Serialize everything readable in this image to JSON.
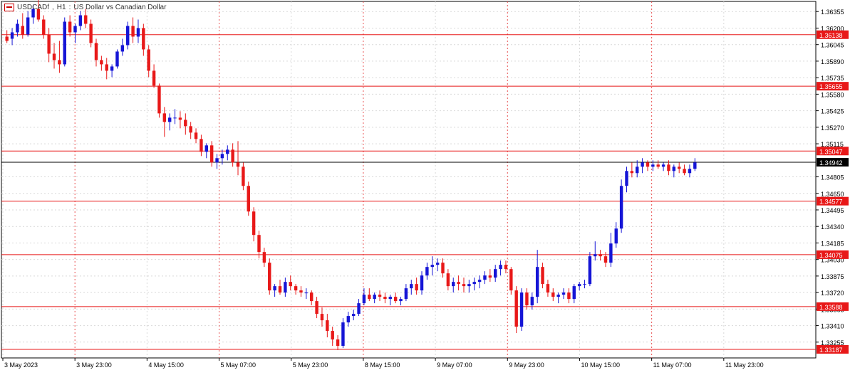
{
  "title_bar": {
    "symbol": "USDCADf",
    "timeframe": "H1",
    "description": "US Dollar vs Canadian Dollar",
    "icon": "chart-window-icon"
  },
  "colors": {
    "up_candle": "#1515d6",
    "down_candle": "#e81818",
    "level_line": "#e81818",
    "current_price_line": "#000000",
    "grid": "#d9d9d9",
    "vertical_session": "#e85050"
  },
  "chart_data": {
    "type": "candlestick",
    "symbol": "USDCADf",
    "timeframe": "H1",
    "ylim": [
      1.33187,
      1.3645
    ],
    "y_ticks": [
      "1.36355",
      "1.36200",
      "1.36045",
      "1.35890",
      "1.35735",
      "1.35580",
      "1.35425",
      "1.35270",
      "1.35115",
      "1.34805",
      "1.34650",
      "1.34495",
      "1.34340",
      "1.34185",
      "1.34030",
      "1.33875",
      "1.33720",
      "1.33565",
      "1.33410",
      "1.33255"
    ],
    "x_ticks": [
      "3 May 2023",
      "3 May 23:00",
      "4 May 15:00",
      "5 May 07:00",
      "5 May 23:00",
      "8 May 15:00",
      "9 May 07:00",
      "9 May 23:00",
      "10 May 15:00",
      "11 May 07:00",
      "11 May 23:00"
    ],
    "levels": [
      1.36138,
      1.35655,
      1.35047,
      1.34577,
      1.34075,
      1.33588,
      1.33187
    ],
    "level_labels": [
      "1.36138",
      "1.35655",
      "1.35047",
      "1.34577",
      "1.34075",
      "1.33588",
      "1.33187"
    ],
    "current_price": 1.34942,
    "current_price_label": "1.34942",
    "grid": true,
    "candles": [
      [
        1.3612,
        1.3618,
        1.3606,
        1.3608
      ],
      [
        1.361,
        1.362,
        1.3604,
        1.3616
      ],
      [
        1.3616,
        1.3628,
        1.3612,
        1.3624
      ],
      [
        1.3622,
        1.3634,
        1.361,
        1.3614
      ],
      [
        1.3614,
        1.3636,
        1.3612,
        1.363
      ],
      [
        1.363,
        1.3642,
        1.3624,
        1.3638
      ],
      [
        1.3638,
        1.365,
        1.3626,
        1.3628
      ],
      [
        1.3628,
        1.3632,
        1.361,
        1.3614
      ],
      [
        1.3614,
        1.362,
        1.3588,
        1.3596
      ],
      [
        1.3596,
        1.3606,
        1.3582,
        1.359
      ],
      [
        1.359,
        1.3608,
        1.3578,
        1.3586
      ],
      [
        1.3586,
        1.363,
        1.3584,
        1.3626
      ],
      [
        1.3626,
        1.3632,
        1.3612,
        1.3616
      ],
      [
        1.3616,
        1.3624,
        1.3606,
        1.3622
      ],
      [
        1.3622,
        1.3636,
        1.3618,
        1.3632
      ],
      [
        1.3632,
        1.3638,
        1.362,
        1.3624
      ],
      [
        1.3624,
        1.3628,
        1.3602,
        1.3606
      ],
      [
        1.3606,
        1.361,
        1.3584,
        1.359
      ],
      [
        1.359,
        1.3594,
        1.358,
        1.3586
      ],
      [
        1.3586,
        1.3592,
        1.3572,
        1.358
      ],
      [
        1.358,
        1.3586,
        1.3574,
        1.3584
      ],
      [
        1.3584,
        1.36,
        1.3582,
        1.3598
      ],
      [
        1.3598,
        1.361,
        1.3594,
        1.3604
      ],
      [
        1.3604,
        1.3626,
        1.36,
        1.3622
      ],
      [
        1.3622,
        1.363,
        1.3606,
        1.3612
      ],
      [
        1.3612,
        1.3628,
        1.3606,
        1.362
      ],
      [
        1.362,
        1.3624,
        1.3594,
        1.36
      ],
      [
        1.36,
        1.3604,
        1.3574,
        1.358
      ],
      [
        1.358,
        1.3586,
        1.3564,
        1.3566
      ],
      [
        1.3566,
        1.3568,
        1.3536,
        1.354
      ],
      [
        1.354,
        1.3546,
        1.3518,
        1.3532
      ],
      [
        1.3532,
        1.354,
        1.3524,
        1.3536
      ],
      [
        1.3536,
        1.3544,
        1.353,
        1.3536
      ],
      [
        1.3536,
        1.3542,
        1.3526,
        1.3534
      ],
      [
        1.3534,
        1.354,
        1.352,
        1.3528
      ],
      [
        1.3528,
        1.3532,
        1.3516,
        1.3522
      ],
      [
        1.3522,
        1.3526,
        1.3512,
        1.3516
      ],
      [
        1.3516,
        1.352,
        1.35,
        1.3504
      ],
      [
        1.3504,
        1.3512,
        1.3498,
        1.351
      ],
      [
        1.351,
        1.3514,
        1.349,
        1.3494
      ],
      [
        1.3494,
        1.3502,
        1.3488,
        1.3498
      ],
      [
        1.3498,
        1.3506,
        1.3492,
        1.3502
      ],
      [
        1.3502,
        1.351,
        1.3496,
        1.3506
      ],
      [
        1.3506,
        1.3512,
        1.349,
        1.3494
      ],
      [
        1.3494,
        1.3514,
        1.3482,
        1.349
      ],
      [
        1.349,
        1.3494,
        1.3468,
        1.3472
      ],
      [
        1.3472,
        1.3476,
        1.3444,
        1.3448
      ],
      [
        1.3448,
        1.3452,
        1.342,
        1.3426
      ],
      [
        1.3426,
        1.343,
        1.3404,
        1.341
      ],
      [
        1.341,
        1.3414,
        1.3396,
        1.34
      ],
      [
        1.34,
        1.3404,
        1.337,
        1.3374
      ],
      [
        1.3374,
        1.338,
        1.3368,
        1.3378
      ],
      [
        1.3378,
        1.3384,
        1.337,
        1.3372
      ],
      [
        1.3372,
        1.3386,
        1.3368,
        1.3382
      ],
      [
        1.3382,
        1.3388,
        1.3374,
        1.3378
      ],
      [
        1.3378,
        1.338,
        1.337,
        1.3374
      ],
      [
        1.3374,
        1.3378,
        1.3368,
        1.3372
      ],
      [
        1.3372,
        1.3376,
        1.3366,
        1.3372
      ],
      [
        1.3372,
        1.3374,
        1.336,
        1.3364
      ],
      [
        1.3364,
        1.3368,
        1.3348,
        1.3352
      ],
      [
        1.3352,
        1.3358,
        1.334,
        1.3346
      ],
      [
        1.3346,
        1.3352,
        1.333,
        1.3336
      ],
      [
        1.3336,
        1.334,
        1.3322,
        1.3328
      ],
      [
        1.3328,
        1.3332,
        1.3318,
        1.3322
      ],
      [
        1.3322,
        1.3348,
        1.332,
        1.3344
      ],
      [
        1.3344,
        1.3354,
        1.334,
        1.335
      ],
      [
        1.335,
        1.3356,
        1.3346,
        1.3352
      ],
      [
        1.3352,
        1.3366,
        1.335,
        1.3362
      ],
      [
        1.3362,
        1.3376,
        1.336,
        1.337
      ],
      [
        1.337,
        1.3376,
        1.3364,
        1.3366
      ],
      [
        1.3366,
        1.3372,
        1.3362,
        1.337
      ],
      [
        1.337,
        1.3374,
        1.3364,
        1.3368
      ],
      [
        1.3368,
        1.3372,
        1.3362,
        1.3366
      ],
      [
        1.3366,
        1.337,
        1.336,
        1.3368
      ],
      [
        1.3368,
        1.3372,
        1.3362,
        1.3364
      ],
      [
        1.3364,
        1.3368,
        1.336,
        1.3366
      ],
      [
        1.3366,
        1.338,
        1.3364,
        1.3376
      ],
      [
        1.3376,
        1.3384,
        1.337,
        1.338
      ],
      [
        1.338,
        1.3386,
        1.337,
        1.3374
      ],
      [
        1.3374,
        1.3392,
        1.337,
        1.3388
      ],
      [
        1.3388,
        1.34,
        1.3384,
        1.3396
      ],
      [
        1.3396,
        1.3406,
        1.3388,
        1.3398
      ],
      [
        1.3398,
        1.3404,
        1.3392,
        1.34
      ],
      [
        1.34,
        1.3404,
        1.3386,
        1.339
      ],
      [
        1.339,
        1.3394,
        1.3374,
        1.3378
      ],
      [
        1.3378,
        1.3386,
        1.3372,
        1.3382
      ],
      [
        1.3382,
        1.3388,
        1.3374,
        1.338
      ],
      [
        1.338,
        1.3386,
        1.3372,
        1.3378
      ],
      [
        1.3378,
        1.3384,
        1.3372,
        1.338
      ],
      [
        1.338,
        1.3386,
        1.3374,
        1.3382
      ],
      [
        1.3382,
        1.3388,
        1.3376,
        1.3384
      ],
      [
        1.3384,
        1.3392,
        1.338,
        1.3388
      ],
      [
        1.3388,
        1.3394,
        1.3382,
        1.3386
      ],
      [
        1.3386,
        1.3398,
        1.3382,
        1.3394
      ],
      [
        1.3394,
        1.3402,
        1.3388,
        1.3398
      ],
      [
        1.3398,
        1.3402,
        1.339,
        1.3394
      ],
      [
        1.3394,
        1.3396,
        1.337,
        1.3374
      ],
      [
        1.3374,
        1.3378,
        1.3334,
        1.334
      ],
      [
        1.334,
        1.3376,
        1.3336,
        1.3372
      ],
      [
        1.3372,
        1.3376,
        1.3356,
        1.336
      ],
      [
        1.336,
        1.3372,
        1.3356,
        1.3368
      ],
      [
        1.3368,
        1.3412,
        1.3362,
        1.3396
      ],
      [
        1.3396,
        1.34,
        1.3376,
        1.338
      ],
      [
        1.338,
        1.3384,
        1.3368,
        1.3372
      ],
      [
        1.3372,
        1.3376,
        1.3364,
        1.3368
      ],
      [
        1.3368,
        1.3372,
        1.3362,
        1.337
      ],
      [
        1.337,
        1.3376,
        1.3366,
        1.3372
      ],
      [
        1.3372,
        1.3376,
        1.3362,
        1.3366
      ],
      [
        1.3366,
        1.338,
        1.3362,
        1.3378
      ],
      [
        1.3378,
        1.3382,
        1.3374,
        1.338
      ],
      [
        1.338,
        1.3384,
        1.3376,
        1.338
      ],
      [
        1.338,
        1.341,
        1.3378,
        1.3406
      ],
      [
        1.3406,
        1.342,
        1.3402,
        1.3408
      ],
      [
        1.3408,
        1.3412,
        1.3402,
        1.3406
      ],
      [
        1.3406,
        1.341,
        1.3396,
        1.34
      ],
      [
        1.34,
        1.3428,
        1.3396,
        1.3418
      ],
      [
        1.3418,
        1.3438,
        1.3414,
        1.3432
      ],
      [
        1.3432,
        1.3478,
        1.3428,
        1.3472
      ],
      [
        1.3472,
        1.349,
        1.3466,
        1.3486
      ],
      [
        1.3486,
        1.3494,
        1.348,
        1.3484
      ],
      [
        1.3484,
        1.3496,
        1.348,
        1.349
      ],
      [
        1.349,
        1.3498,
        1.3484,
        1.3494
      ],
      [
        1.3494,
        1.3496,
        1.3486,
        1.349
      ],
      [
        1.349,
        1.3496,
        1.3486,
        1.3492
      ],
      [
        1.3492,
        1.3496,
        1.3488,
        1.349
      ],
      [
        1.349,
        1.3494,
        1.3486,
        1.3492
      ],
      [
        1.3492,
        1.3496,
        1.3482,
        1.3486
      ],
      [
        1.3486,
        1.3492,
        1.348,
        1.349
      ],
      [
        1.349,
        1.3494,
        1.3484,
        1.3488
      ],
      [
        1.3488,
        1.3492,
        1.3482,
        1.3484
      ],
      [
        1.3484,
        1.3492,
        1.348,
        1.3488
      ],
      [
        1.3488,
        1.3498,
        1.3486,
        1.3494
      ]
    ]
  }
}
